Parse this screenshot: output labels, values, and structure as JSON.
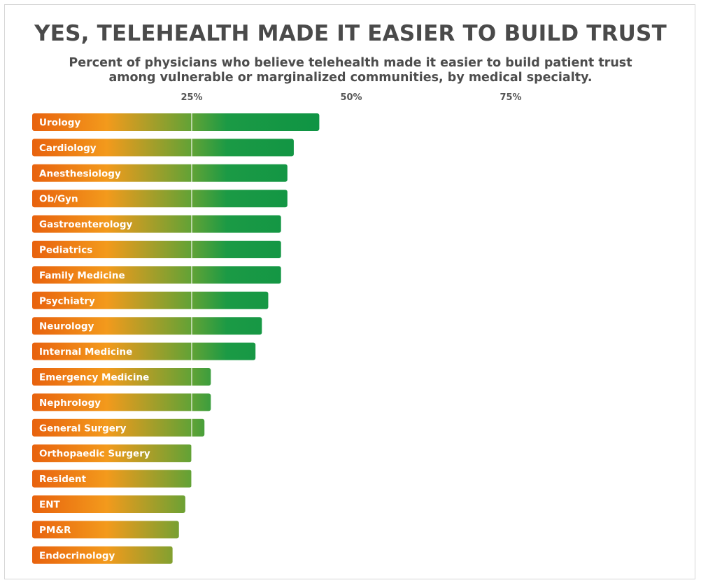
{
  "title": "YES, TELEHEALTH MADE IT EASIER TO BUILD TRUST",
  "subtitle": "Percent of physicians who believe telehealth made it easier to build patient trust among vulnerable or marginalized communities, by medical specialty.",
  "colors": {
    "gradient_start": "#e8620e",
    "gradient_mid": "#f39a1c",
    "gradient_green": "#129a45",
    "grid": "#ffffff",
    "text": "#4a4a4a"
  },
  "chart_data": {
    "type": "bar",
    "orientation": "horizontal",
    "title": "YES, TELEHEALTH MADE IT EASIER TO BUILD TRUST",
    "subtitle": "Percent of physicians who believe telehealth made it easier to build patient trust among vulnerable or marginalized communities, by medical specialty.",
    "xlim": [
      0,
      100
    ],
    "ticks": [
      25,
      50,
      75
    ],
    "tick_labels": [
      "25%",
      "50%",
      "75%"
    ],
    "grid": true,
    "categories": [
      "Urology",
      "Cardiology",
      "Anesthesiology",
      "Ob/Gyn",
      "Gastroenterology",
      "Pediatrics",
      "Family Medicine",
      "Psychiatry",
      "Neurology",
      "Internal Medicine",
      "Emergency Medicine",
      "Nephrology",
      "General Surgery",
      "Orthopaedic Surgery",
      "Resident",
      "ENT",
      "PM&R",
      "Endocrinology"
    ],
    "values": [
      45,
      41,
      40,
      40,
      39,
      39,
      39,
      37,
      36,
      35,
      28,
      28,
      27,
      25,
      25,
      24,
      23,
      22
    ]
  }
}
